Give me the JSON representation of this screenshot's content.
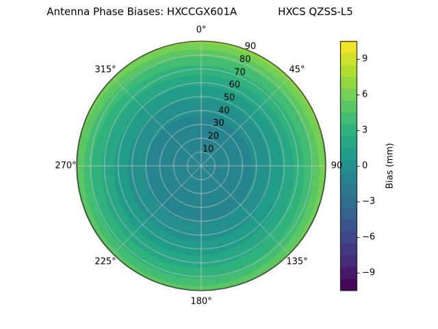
{
  "figure": {
    "background": "#ffffff"
  },
  "chart_data": {
    "type": "heatmap",
    "projection": "polar",
    "title": "Antenna Phase Biases: HXCCGX601A        HXCS QZSS-L5",
    "title_parts": [
      "Antenna Phase Biases: HXCCGX601A",
      "HXCS QZSS-L5"
    ],
    "angular_ticks": [
      {
        "label": "0°",
        "deg": 0
      },
      {
        "label": "45°",
        "deg": 45
      },
      {
        "label": "90",
        "deg": 90
      },
      {
        "label": "135°",
        "deg": 135
      },
      {
        "label": "180°",
        "deg": 180
      },
      {
        "label": "225°",
        "deg": 225
      },
      {
        "label": "270°",
        "deg": 270
      },
      {
        "label": "315°",
        "deg": 315
      }
    ],
    "radial_ticks": [
      {
        "label": "10",
        "value": 10
      },
      {
        "label": "20",
        "value": 20
      },
      {
        "label": "30",
        "value": 30
      },
      {
        "label": "40",
        "value": 40
      },
      {
        "label": "50",
        "value": 50
      },
      {
        "label": "60",
        "value": 60
      },
      {
        "label": "70",
        "value": 70
      },
      {
        "label": "80",
        "value": 80
      },
      {
        "label": "90",
        "value": 90
      }
    ],
    "radial_axis": {
      "min": 0,
      "max": 90,
      "label_azimuth_deg": 22.5
    },
    "colormap": "viridis",
    "colormap_stops": [
      "#440154",
      "#482878",
      "#3e4a89",
      "#31688e",
      "#26828e",
      "#1f9e89",
      "#35b779",
      "#6ece58",
      "#b5de2b",
      "#fde725"
    ],
    "colorbar": {
      "label": "Bias (mm)",
      "vmin": -10.5,
      "vmax": 10.5,
      "level_step": 1,
      "ticks": [
        {
          "label": "9",
          "value": 9
        },
        {
          "label": "6",
          "value": 6
        },
        {
          "label": "3",
          "value": 3
        },
        {
          "label": "0",
          "value": 0
        },
        {
          "label": "−3",
          "value": -3
        },
        {
          "label": "−6",
          "value": -6
        },
        {
          "label": "−9",
          "value": -9
        }
      ]
    },
    "profile": {
      "zenith_deg": [
        0,
        10,
        20,
        30,
        40,
        50,
        60,
        70,
        80,
        90
      ],
      "bias_mm": [
        -0.8,
        -1.0,
        -1.2,
        -1.0,
        -0.4,
        0.4,
        1.4,
        2.6,
        4.0,
        6.0
      ]
    },
    "azimuthal_modulation": {
      "amplitude_at_horizon_mm": 1.0,
      "peak_azimuth_deg": 30
    },
    "grid": true,
    "grid_color": "#c8c8c8"
  }
}
